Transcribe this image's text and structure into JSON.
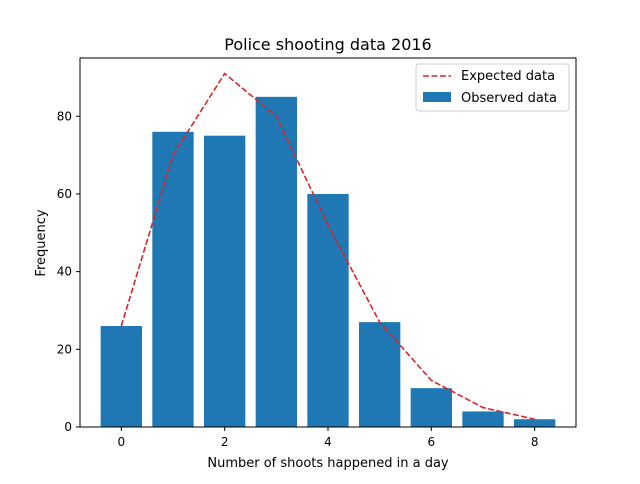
{
  "chart_data": {
    "type": "bar",
    "title": "Police shooting data 2016",
    "xlabel": "Number of shoots happened in a day",
    "ylabel": "Frequency",
    "xlim": [
      -0.8,
      8.8
    ],
    "ylim": [
      0,
      95
    ],
    "x_ticks": [
      0,
      2,
      4,
      6,
      8
    ],
    "y_ticks": [
      0,
      20,
      40,
      60,
      80
    ],
    "grid": false,
    "legend_position": "upper right",
    "x": [
      0,
      1,
      2,
      3,
      4,
      5,
      6,
      7,
      8
    ],
    "series": [
      {
        "name": "Observed data",
        "type": "bar",
        "color": "#1f77b4",
        "values": [
          26,
          76,
          75,
          85,
          60,
          27,
          10,
          4,
          2
        ]
      },
      {
        "name": "Expected data",
        "type": "line",
        "style": "dashed",
        "color": "#d62728",
        "values": [
          26,
          70,
          91,
          80,
          52,
          27,
          12,
          5,
          2
        ]
      }
    ]
  }
}
